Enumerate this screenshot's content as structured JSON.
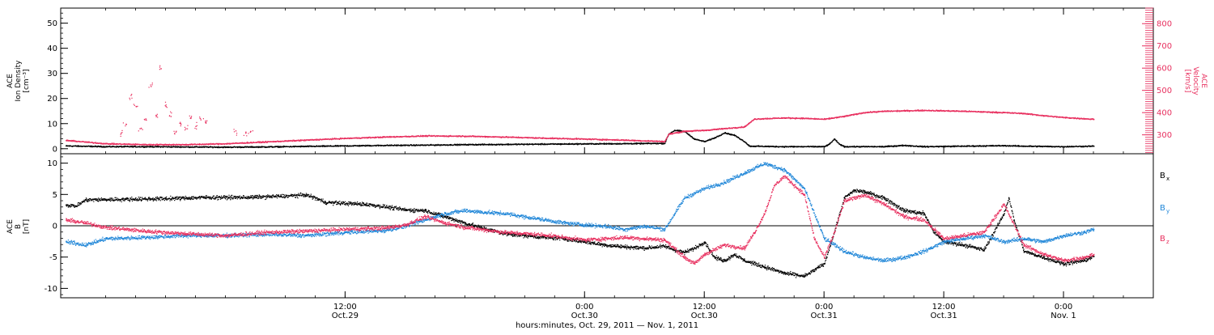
{
  "xaxis": {
    "label": "hours:minutes, Oct. 29, 2011 — Nov. 1, 2011",
    "range_hours": [
      -16.5,
      93
    ],
    "ticks": [
      {
        "t": 12,
        "time": "12:00",
        "date": "Oct.29"
      },
      {
        "t": 36,
        "time": "0:00",
        "date": "Oct.30"
      },
      {
        "t": 48,
        "time": "12:00",
        "date": "Oct.30"
      },
      {
        "t": 60,
        "time": "0:00",
        "date": "Oct.31"
      },
      {
        "t": 72,
        "time": "12:00",
        "date": "Oct.31"
      },
      {
        "t": 84,
        "time": "0:00",
        "date": "Nov. 1"
      }
    ]
  },
  "colors": {
    "black": "#000000",
    "pink": "#e8305f",
    "blue": "#1f86d8"
  },
  "chart_data": [
    {
      "type": "scatter",
      "ylabel": "ACE Ion Density [cm⁻³]",
      "ylabel_lines": [
        "ACE",
        "Ion Density",
        "[cm⁻³]"
      ],
      "ylim": [
        -2,
        56
      ],
      "yticks": [
        "0",
        "10",
        "20",
        "30",
        "40",
        "50"
      ],
      "y2label": "ACE Velocity [km/s]",
      "y2label_lines": [
        "ACE",
        "Velocity",
        "[km/s]"
      ],
      "y2lim": [
        215,
        870
      ],
      "y2ticks": [
        "300",
        "400",
        "500",
        "600",
        "700",
        "800"
      ],
      "series": [
        {
          "color": "black",
          "axis": "left",
          "points": [
            [
              -16,
              1.3
            ],
            [
              -12,
              1.0
            ],
            [
              -8,
              1.0
            ],
            [
              -4,
              0.9
            ],
            [
              0,
              0.8
            ],
            [
              4,
              0.9
            ],
            [
              8,
              1.1
            ],
            [
              12,
              1.3
            ],
            [
              16,
              1.5
            ],
            [
              20,
              1.6
            ],
            [
              24,
              1.8
            ],
            [
              28,
              1.9
            ],
            [
              32,
              2.0
            ],
            [
              36,
              2.1
            ],
            [
              40,
              2.2
            ],
            [
              44,
              2.3
            ],
            [
              44.4,
              6
            ],
            [
              45,
              7.5
            ],
            [
              46,
              7.0
            ],
            [
              47,
              4
            ],
            [
              48,
              3
            ],
            [
              49,
              4.5
            ],
            [
              50,
              6.5
            ],
            [
              51,
              5.5
            ],
            [
              52,
              3
            ],
            [
              52.5,
              1.2
            ],
            [
              56,
              1.0
            ],
            [
              60,
              1.0
            ],
            [
              60.5,
              2
            ],
            [
              61,
              4
            ],
            [
              61.5,
              2
            ],
            [
              62,
              1.0
            ],
            [
              66,
              1.0
            ],
            [
              68,
              1.5
            ],
            [
              70,
              1.0
            ],
            [
              74,
              1.2
            ],
            [
              78,
              1.4
            ],
            [
              80,
              1.2
            ],
            [
              84,
              1.0
            ],
            [
              87,
              1.2
            ]
          ]
        },
        {
          "color": "pink",
          "axis": "right",
          "points": [
            [
              -16,
              277
            ],
            [
              -12,
              262
            ],
            [
              -8,
              258
            ],
            [
              -4,
              258
            ],
            [
              0,
              262
            ],
            [
              4,
              270
            ],
            [
              8,
              278
            ],
            [
              12,
              286
            ],
            [
              16,
              292
            ],
            [
              20,
              297
            ],
            [
              24,
              296
            ],
            [
              28,
              292
            ],
            [
              32,
              287
            ],
            [
              36,
              283
            ],
            [
              40,
              278
            ],
            [
              44,
              272
            ],
            [
              44.4,
              305
            ],
            [
              46,
              318
            ],
            [
              48,
              322
            ],
            [
              50,
              330
            ],
            [
              52,
              338
            ],
            [
              53,
              373
            ],
            [
              56,
              378
            ],
            [
              58,
              376
            ],
            [
              60,
              372
            ],
            [
              62,
              385
            ],
            [
              64,
              402
            ],
            [
              66,
              408
            ],
            [
              70,
              412
            ],
            [
              74,
              408
            ],
            [
              78,
              402
            ],
            [
              80,
              398
            ],
            [
              82,
              388
            ],
            [
              84,
              380
            ],
            [
              87,
              372
            ]
          ]
        }
      ],
      "scattered_pink": [
        [
          -10.5,
          310
        ],
        [
          -10,
          350
        ],
        [
          -9.5,
          480
        ],
        [
          -9,
          430
        ],
        [
          -8.6,
          330
        ],
        [
          -8,
          370
        ],
        [
          -7.5,
          520
        ],
        [
          -7,
          390
        ],
        [
          -6.5,
          600
        ],
        [
          -6,
          430
        ],
        [
          -5.5,
          385
        ],
        [
          -5,
          315
        ],
        [
          -4.5,
          350
        ],
        [
          -4,
          330
        ],
        [
          -3.5,
          380
        ],
        [
          -3,
          340
        ],
        [
          -2.5,
          370
        ],
        [
          -2,
          355
        ],
        [
          1,
          320
        ],
        [
          2,
          310
        ],
        [
          2.5,
          318
        ]
      ]
    },
    {
      "type": "scatter",
      "ylabel": "ACE B [nT]",
      "ylabel_lines": [
        "ACE",
        "B",
        "[nT]"
      ],
      "ylim": [
        -11.5,
        11.5
      ],
      "yticks": [
        "-10",
        "-5",
        "0",
        "5",
        "10"
      ],
      "series": [
        {
          "name": "Bx",
          "label": "B",
          "sub": "x",
          "color": "black",
          "points": [
            [
              -16,
              3.4
            ],
            [
              -15,
              3.2
            ],
            [
              -14,
              4.2
            ],
            [
              -10,
              4.3
            ],
            [
              -6,
              4.4
            ],
            [
              -2,
              4.6
            ],
            [
              2,
              4.6
            ],
            [
              6,
              4.8
            ],
            [
              8,
              5.0
            ],
            [
              9,
              4.5
            ],
            [
              10,
              3.8
            ],
            [
              14,
              3.5
            ],
            [
              16,
              3.1
            ],
            [
              18,
              2.6
            ],
            [
              20,
              2.5
            ],
            [
              22,
              1.5
            ],
            [
              24,
              0.5
            ],
            [
              26,
              -0.4
            ],
            [
              28,
              -1.2
            ],
            [
              30,
              -1.5
            ],
            [
              32,
              -1.8
            ],
            [
              34,
              -2.0
            ],
            [
              36,
              -2.5
            ],
            [
              38,
              -3.0
            ],
            [
              40,
              -3.3
            ],
            [
              42,
              -3.5
            ],
            [
              44,
              -3.2
            ],
            [
              45,
              -3.8
            ],
            [
              46,
              -4.2
            ],
            [
              47,
              -3.5
            ],
            [
              48,
              -2.5
            ],
            [
              49,
              -5.0
            ],
            [
              50,
              -5.5
            ],
            [
              51,
              -4.5
            ],
            [
              52,
              -5.5
            ],
            [
              54,
              -6.5
            ],
            [
              56,
              -7.5
            ],
            [
              58,
              -8.0
            ],
            [
              60,
              -6.0
            ],
            [
              61,
              -1
            ],
            [
              62,
              4.5
            ],
            [
              63,
              5.7
            ],
            [
              64,
              5.5
            ],
            [
              66,
              4.5
            ],
            [
              68,
              2.5
            ],
            [
              70,
              2.0
            ],
            [
              71,
              -1
            ],
            [
              72,
              -2.5
            ],
            [
              74,
              -3.0
            ],
            [
              76,
              -3.8
            ],
            [
              77,
              -1.0
            ],
            [
              78,
              2.0
            ],
            [
              78.5,
              4.5
            ],
            [
              79,
              1
            ],
            [
              80,
              -4.0
            ],
            [
              82,
              -5.0
            ],
            [
              84,
              -6.0
            ],
            [
              86,
              -5.5
            ],
            [
              87,
              -4.8
            ]
          ]
        },
        {
          "name": "By",
          "label": "B",
          "sub": "y",
          "color": "blue",
          "points": [
            [
              -16,
              -2.5
            ],
            [
              -14,
              -3.0
            ],
            [
              -12,
              -2.0
            ],
            [
              -8,
              -1.8
            ],
            [
              -4,
              -1.5
            ],
            [
              0,
              -1.5
            ],
            [
              4,
              -1.3
            ],
            [
              8,
              -1.5
            ],
            [
              12,
              -1.0
            ],
            [
              16,
              -0.7
            ],
            [
              18,
              0
            ],
            [
              20,
              1.0
            ],
            [
              22,
              2.0
            ],
            [
              24,
              2.5
            ],
            [
              26,
              2.2
            ],
            [
              28,
              2.0
            ],
            [
              30,
              1.5
            ],
            [
              32,
              1.0
            ],
            [
              34,
              0.5
            ],
            [
              36,
              0.2
            ],
            [
              38,
              0
            ],
            [
              40,
              -0.5
            ],
            [
              42,
              0
            ],
            [
              44,
              -0.5
            ],
            [
              45,
              2.0
            ],
            [
              46,
              4.5
            ],
            [
              48,
              6.0
            ],
            [
              50,
              7.0
            ],
            [
              52,
              8.5
            ],
            [
              54,
              10.0
            ],
            [
              56,
              9.0
            ],
            [
              58,
              6.0
            ],
            [
              60,
              -2.0
            ],
            [
              62,
              -4.0
            ],
            [
              64,
              -5.0
            ],
            [
              66,
              -5.5
            ],
            [
              68,
              -5.0
            ],
            [
              70,
              -4.0
            ],
            [
              72,
              -2.5
            ],
            [
              74,
              -2.0
            ],
            [
              76,
              -1.5
            ],
            [
              78,
              -2.5
            ],
            [
              80,
              -2.0
            ],
            [
              82,
              -2.5
            ],
            [
              84,
              -1.5
            ],
            [
              86,
              -1.0
            ],
            [
              87,
              -0.5
            ]
          ]
        },
        {
          "name": "Bz",
          "label": "B",
          "sub": "z",
          "color": "pink",
          "points": [
            [
              -16,
              1.0
            ],
            [
              -14,
              0.5
            ],
            [
              -12,
              -0.2
            ],
            [
              -8,
              -0.8
            ],
            [
              -4,
              -1.2
            ],
            [
              0,
              -1.5
            ],
            [
              4,
              -1.0
            ],
            [
              8,
              -0.8
            ],
            [
              12,
              -0.5
            ],
            [
              16,
              -0.3
            ],
            [
              18,
              0.2
            ],
            [
              20,
              1.5
            ],
            [
              22,
              0.5
            ],
            [
              24,
              -0.2
            ],
            [
              26,
              -0.6
            ],
            [
              28,
              -1.0
            ],
            [
              30,
              -1.2
            ],
            [
              32,
              -1.4
            ],
            [
              34,
              -1.8
            ],
            [
              36,
              -2.2
            ],
            [
              38,
              -2.0
            ],
            [
              40,
              -1.8
            ],
            [
              42,
              -2.0
            ],
            [
              44,
              -2.2
            ],
            [
              46,
              -5.0
            ],
            [
              47,
              -6.0
            ],
            [
              48,
              -4.5
            ],
            [
              50,
              -3.0
            ],
            [
              52,
              -3.5
            ],
            [
              53,
              -1
            ],
            [
              54,
              2.0
            ],
            [
              55,
              6.5
            ],
            [
              56,
              8.0
            ],
            [
              58,
              5.0
            ],
            [
              59,
              -2
            ],
            [
              60,
              -5.0
            ],
            [
              61,
              -1.0
            ],
            [
              62,
              4.0
            ],
            [
              64,
              5.0
            ],
            [
              66,
              3.5
            ],
            [
              68,
              1.5
            ],
            [
              70,
              1.0
            ],
            [
              72,
              -2.0
            ],
            [
              74,
              -1.5
            ],
            [
              76,
              -1.0
            ],
            [
              78,
              3.5
            ],
            [
              80,
              -3.0
            ],
            [
              82,
              -4.5
            ],
            [
              84,
              -5.5
            ],
            [
              86,
              -5.0
            ],
            [
              87,
              -4.5
            ]
          ]
        }
      ]
    }
  ]
}
